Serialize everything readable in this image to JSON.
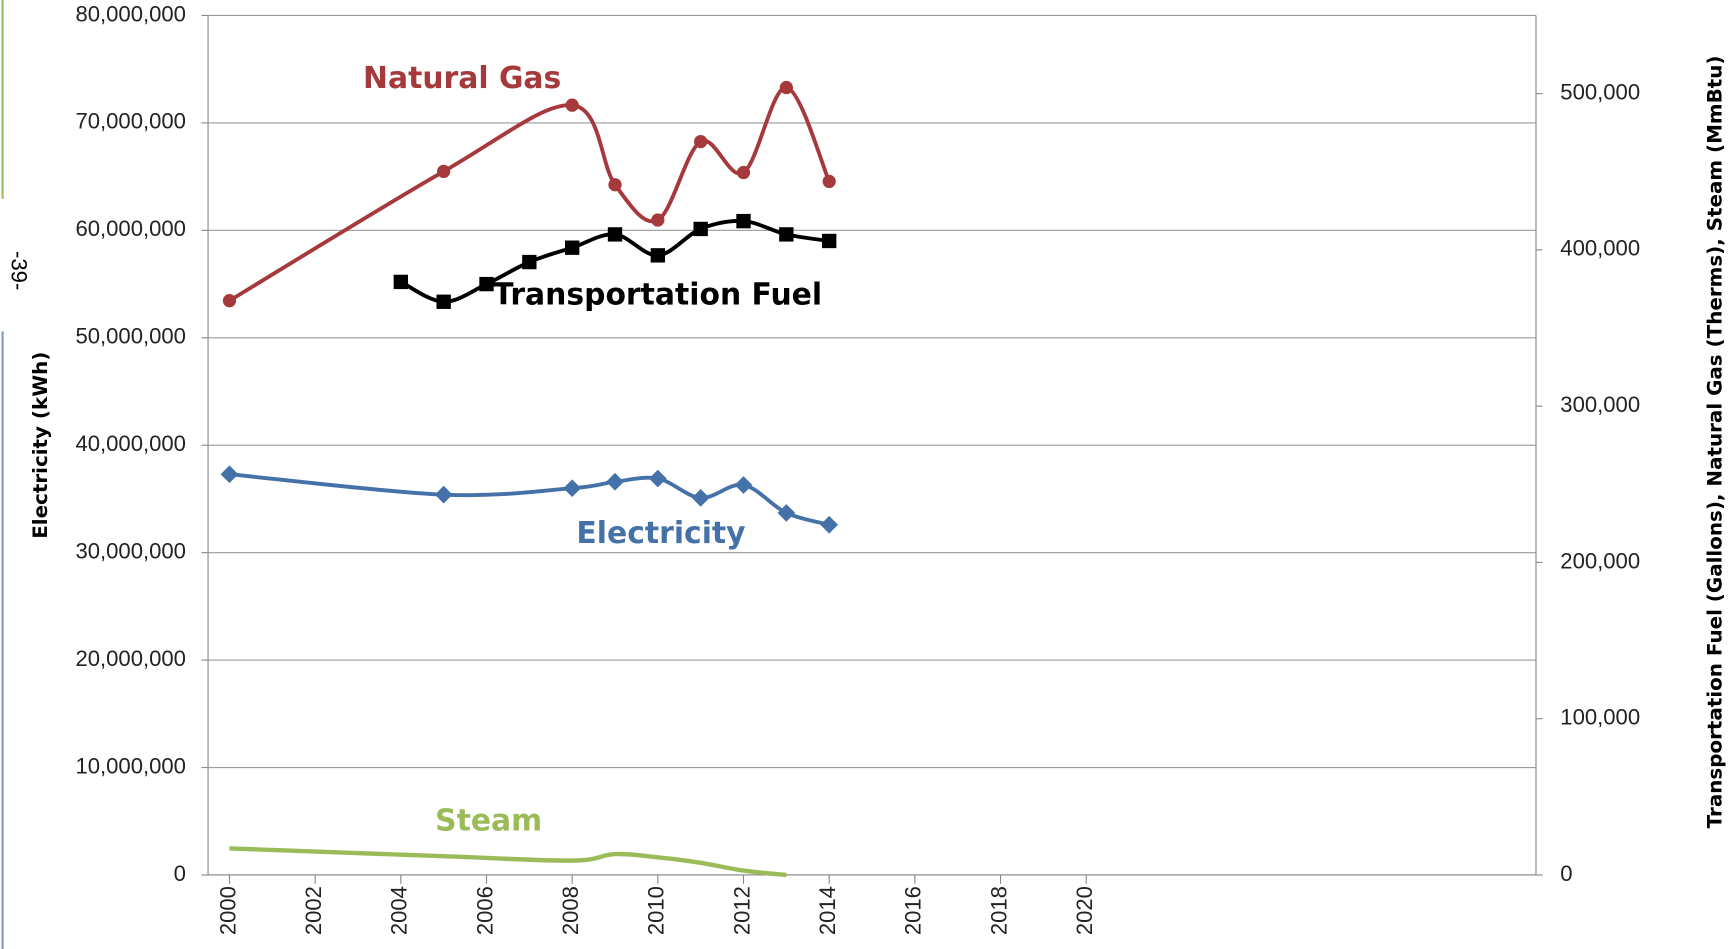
{
  "page_label": "-39-",
  "chart_data": {
    "type": "line",
    "y_label": "Electricity (kWh)",
    "y2_label": "Transportation  Fuel (Gallons), Natural Gas (Therms), Steam (MmBtu)",
    "xlim": [
      1999.5,
      2030.5
    ],
    "xticks": [
      2000,
      2002,
      2004,
      2006,
      2008,
      2010,
      2012,
      2014,
      2016,
      2018,
      2020
    ],
    "ylim": [
      0,
      80000000
    ],
    "yticks": [
      0,
      {
        "value": 10000000,
        "label": "10,000,000"
      },
      {
        "value": 20000000,
        "label": "20,000,000"
      },
      {
        "value": 30000000,
        "label": "30,000,000"
      },
      {
        "value": 40000000,
        "label": "40,000,000"
      },
      {
        "value": 50000000,
        "label": "50,000,000"
      },
      {
        "value": 60000000,
        "label": "60,000,000"
      },
      {
        "value": 70000000,
        "label": "70,000,000"
      },
      {
        "value": 80000000,
        "label": "80,000,000"
      }
    ],
    "y2lim": [
      0,
      550000
    ],
    "y2ticks": [
      0,
      {
        "value": 100000,
        "label": "100,000"
      },
      {
        "value": 200000,
        "label": "200,000"
      },
      {
        "value": 300000,
        "label": "300,000"
      },
      {
        "value": 400000,
        "label": "400,000"
      },
      {
        "value": 500000,
        "label": "500,000"
      }
    ],
    "grid": true,
    "series": [
      {
        "name": "Natural Gas",
        "color": "#a5393b",
        "marker": "circle",
        "axis": "y2",
        "x": [
          2000,
          2005,
          2008,
          2009,
          2010,
          2011,
          2012,
          2013,
          2014
        ],
        "values": [
          367500,
          450200,
          492600,
          441700,
          419100,
          469300,
          449500,
          503900,
          443800
        ]
      },
      {
        "name": "Transportation Fuel",
        "color": "#000000",
        "marker": "square",
        "axis": "y2",
        "x": [
          2004,
          2005,
          2006,
          2007,
          2008,
          2009,
          2010,
          2011,
          2012,
          2013,
          2014
        ],
        "values": [
          379500,
          366800,
          378100,
          392200,
          401400,
          409900,
          396500,
          413400,
          418400,
          409900,
          405700
        ]
      },
      {
        "name": "Electricity",
        "color": "#4472a8",
        "marker": "diamond",
        "axis": "y",
        "x": [
          2000,
          2005,
          2008,
          2009,
          2010,
          2011,
          2012,
          2013,
          2014
        ],
        "values": [
          37300000,
          35400000,
          36000000,
          36600000,
          36900000,
          35100000,
          36300000,
          33700000,
          32600000
        ]
      },
      {
        "name": "Steam",
        "color": "#9bbb59",
        "marker": "none",
        "axis": "y2",
        "x": [
          2000,
          2005,
          2008,
          2009,
          2010,
          2011,
          2012,
          2013
        ],
        "values": [
          17000,
          12000,
          9200,
          13400,
          11300,
          7800,
          2800,
          0
        ]
      }
    ]
  }
}
